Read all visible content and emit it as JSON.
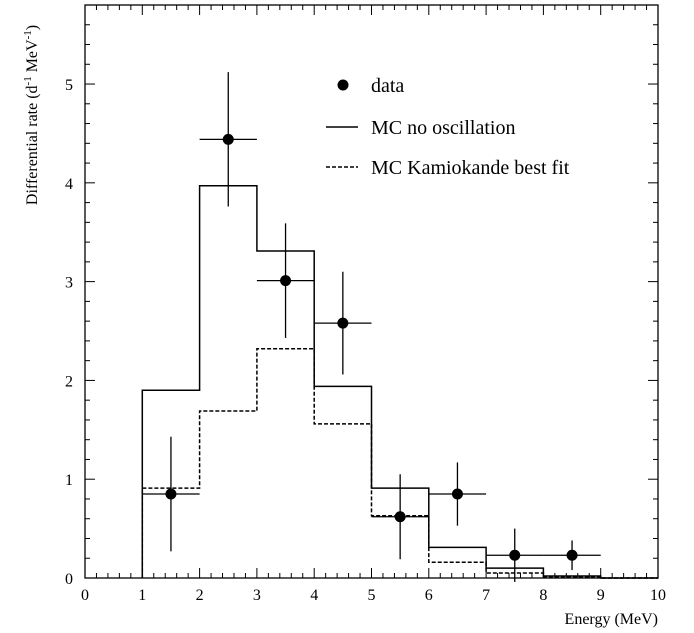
{
  "chart_data": {
    "type": "histogram",
    "xlabel": "Energy (MeV)",
    "ylabel_main": "Differential rate (d",
    "ylabel_sup1": "-1",
    "ylabel_mid": " MeV",
    "ylabel_sup2": "-1",
    "ylabel_end": ")",
    "xlim": [
      0,
      10
    ],
    "ylim": [
      0,
      5.8
    ],
    "x_ticks": [
      "0",
      "1",
      "2",
      "3",
      "4",
      "5",
      "6",
      "7",
      "8",
      "9",
      "10"
    ],
    "y_ticks": [
      "0",
      "1",
      "2",
      "3",
      "4",
      "5"
    ],
    "bin_edges": [
      1,
      2,
      3,
      4,
      5,
      6,
      7,
      8,
      9,
      10
    ],
    "legend": {
      "position": "top-right",
      "entries": [
        "data",
        "MC no oscillation",
        "MC Kamiokande best fit"
      ]
    },
    "series": [
      {
        "name": "MC no oscillation",
        "style": "solid",
        "values": [
          1.9,
          3.97,
          3.31,
          1.94,
          0.91,
          0.31,
          0.1,
          0.02,
          0.0
        ]
      },
      {
        "name": "MC Kamiokande best fit",
        "style": "dashed",
        "values": [
          0.91,
          1.69,
          2.32,
          1.56,
          0.63,
          0.16,
          0.05,
          0.01,
          0.0
        ]
      }
    ],
    "data_points": [
      {
        "x": 1.5,
        "y": 0.85,
        "yerr": 0.58,
        "xerr": 0.5
      },
      {
        "x": 2.5,
        "y": 4.44,
        "yerr": 0.68,
        "xerr": 0.5
      },
      {
        "x": 3.5,
        "y": 3.01,
        "yerr": 0.58,
        "xerr": 0.5
      },
      {
        "x": 4.5,
        "y": 2.58,
        "yerr": 0.52,
        "xerr": 0.5
      },
      {
        "x": 5.5,
        "y": 0.62,
        "yerr": 0.43,
        "xerr": 0.5
      },
      {
        "x": 6.5,
        "y": 0.85,
        "yerr": 0.32,
        "xerr": 0.5
      },
      {
        "x": 7.5,
        "y": 0.23,
        "yerr": 0.27,
        "xerr": 0.5
      },
      {
        "x": 8.5,
        "y": 0.23,
        "yerr": 0.15,
        "xerr": 0.5
      }
    ]
  }
}
